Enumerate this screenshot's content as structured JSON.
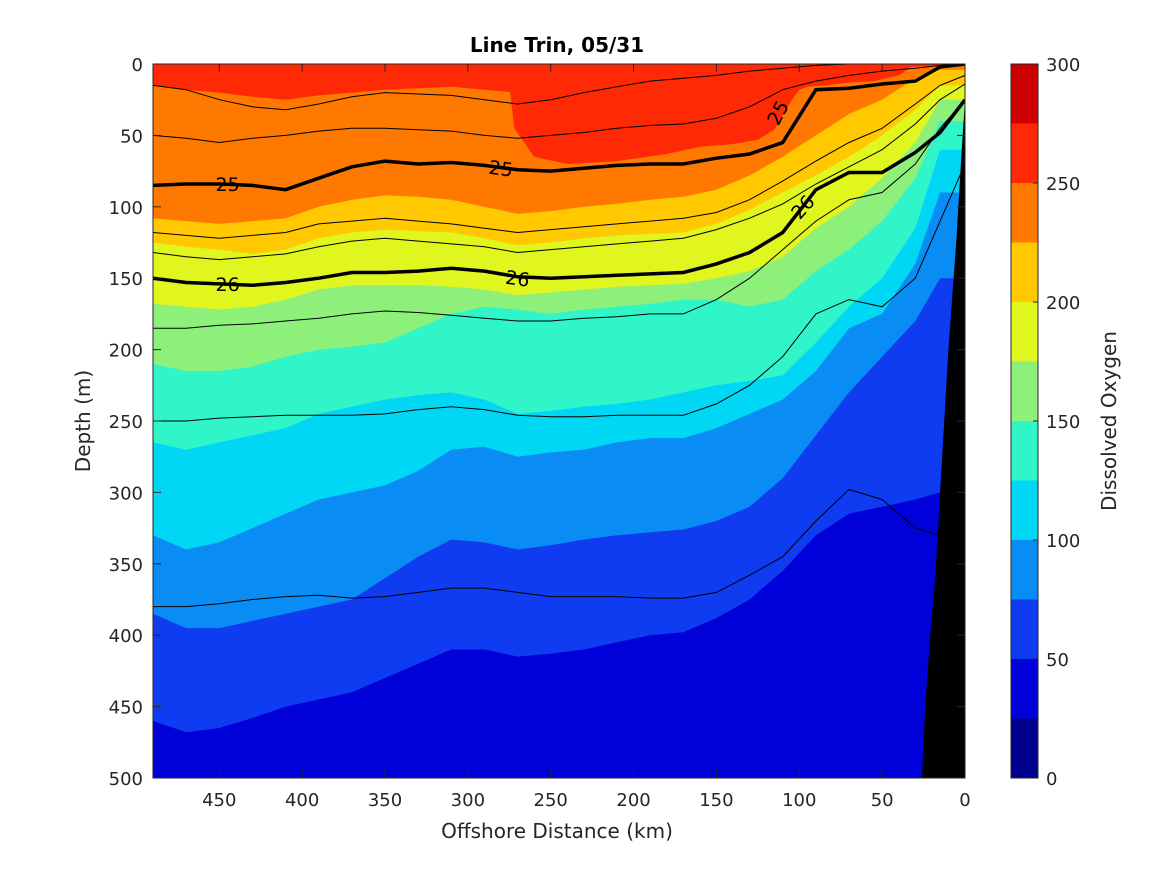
{
  "chart_data": {
    "type": "heatmap",
    "title": "Line Trin, 05/31",
    "xlabel": "Offshore Distance (km)",
    "ylabel": "Depth (m)",
    "xlim": [
      490,
      0
    ],
    "ylim": [
      0,
      500
    ],
    "x_reversed": true,
    "y_reversed": true,
    "xticks": [
      "450",
      "400",
      "350",
      "300",
      "250",
      "200",
      "150",
      "100",
      "50",
      "0"
    ],
    "yticks": [
      "0",
      "50",
      "100",
      "150",
      "200",
      "250",
      "300",
      "350",
      "400",
      "450",
      "500"
    ],
    "colorbar": {
      "label": "Dissolved Oxygen",
      "range": [
        0,
        300
      ],
      "ticks": [
        "0",
        "50",
        "100",
        "150",
        "200",
        "250",
        "300"
      ],
      "levels": [
        {
          "lo": 0,
          "hi": 25,
          "color": "#00008f"
        },
        {
          "lo": 25,
          "hi": 50,
          "color": "#0000d9"
        },
        {
          "lo": 50,
          "hi": 75,
          "color": "#0f3cf0"
        },
        {
          "lo": 75,
          "hi": 100,
          "color": "#0a8cf5"
        },
        {
          "lo": 100,
          "hi": 125,
          "color": "#00d7f5"
        },
        {
          "lo": 125,
          "hi": 150,
          "color": "#2ff5c8"
        },
        {
          "lo": 150,
          "hi": 175,
          "color": "#8cf07a"
        },
        {
          "lo": 175,
          "hi": 200,
          "color": "#e1f51e"
        },
        {
          "lo": 200,
          "hi": 225,
          "color": "#ffc800"
        },
        {
          "lo": 225,
          "hi": 250,
          "color": "#ff7800"
        },
        {
          "lo": 250,
          "hi": 275,
          "color": "#ff2a05"
        },
        {
          "lo": 275,
          "hi": 300,
          "color": "#cc0000"
        }
      ]
    },
    "oxygen_isolines": {
      "x": [
        490,
        470,
        450,
        430,
        410,
        390,
        370,
        350,
        330,
        310,
        290,
        270,
        250,
        230,
        210,
        190,
        170,
        150,
        130,
        110,
        90,
        70,
        50,
        30,
        15
      ],
      "lines": [
        {
          "level": 250,
          "depth": [
            15,
            18,
            20,
            23,
            25,
            22,
            20,
            18,
            17,
            16,
            18,
            20,
            22,
            20,
            18,
            18,
            18,
            15,
            12,
            8,
            6,
            4,
            3,
            2,
            1
          ]
        },
        {
          "level": 225,
          "depth": [
            108,
            110,
            112,
            110,
            108,
            100,
            95,
            92,
            93,
            95,
            100,
            105,
            103,
            100,
            98,
            95,
            93,
            88,
            78,
            65,
            50,
            35,
            25,
            10,
            4
          ]
        },
        {
          "level": 200,
          "depth": [
            125,
            128,
            130,
            133,
            130,
            122,
            118,
            116,
            117,
            118,
            122,
            127,
            125,
            122,
            120,
            119,
            118,
            112,
            102,
            90,
            78,
            65,
            50,
            32,
            15
          ]
        },
        {
          "level": 175,
          "depth": [
            168,
            170,
            172,
            170,
            165,
            158,
            155,
            155,
            155,
            156,
            158,
            162,
            160,
            158,
            156,
            155,
            154,
            150,
            145,
            135,
            115,
            100,
            80,
            55,
            25
          ]
        },
        {
          "level": 150,
          "depth": [
            210,
            215,
            215,
            212,
            205,
            200,
            198,
            195,
            185,
            175,
            170,
            172,
            175,
            172,
            170,
            168,
            165,
            165,
            170,
            165,
            145,
            130,
            110,
            80,
            40
          ]
        },
        {
          "level": 125,
          "depth": [
            265,
            270,
            265,
            260,
            255,
            245,
            240,
            235,
            232,
            230,
            235,
            245,
            243,
            240,
            238,
            235,
            230,
            225,
            222,
            218,
            195,
            170,
            150,
            115,
            60
          ]
        },
        {
          "level": 100,
          "depth": [
            330,
            340,
            335,
            325,
            315,
            305,
            300,
            295,
            285,
            270,
            268,
            275,
            272,
            270,
            265,
            262,
            262,
            255,
            245,
            235,
            215,
            185,
            175,
            140,
            90
          ]
        },
        {
          "level": 75,
          "depth": [
            385,
            395,
            395,
            390,
            385,
            380,
            375,
            360,
            345,
            333,
            335,
            340,
            337,
            333,
            330,
            328,
            326,
            320,
            310,
            290,
            260,
            230,
            205,
            180,
            150
          ]
        },
        {
          "level": 50,
          "depth": [
            460,
            468,
            465,
            458,
            450,
            445,
            440,
            430,
            420,
            410,
            410,
            415,
            413,
            410,
            405,
            400,
            398,
            388,
            375,
            355,
            330,
            315,
            310,
            305,
            300
          ]
        }
      ]
    },
    "density_contours": {
      "x": [
        490,
        470,
        450,
        430,
        410,
        390,
        370,
        350,
        330,
        310,
        290,
        270,
        250,
        230,
        210,
        190,
        170,
        150,
        130,
        110,
        90,
        70,
        50,
        30,
        15,
        0
      ],
      "thin": [
        [
          15,
          18,
          25,
          30,
          32,
          28,
          23,
          20,
          21,
          22,
          25,
          28,
          25,
          20,
          16,
          12,
          10,
          8,
          5,
          3,
          1,
          0,
          0,
          0,
          0,
          0
        ],
        [
          50,
          52,
          55,
          52,
          50,
          47,
          45,
          45,
          46,
          47,
          50,
          52,
          50,
          48,
          45,
          43,
          42,
          38,
          30,
          18,
          12,
          8,
          5,
          3,
          1,
          0
        ],
        [
          118,
          120,
          122,
          120,
          118,
          112,
          110,
          108,
          110,
          112,
          115,
          118,
          116,
          114,
          112,
          110,
          108,
          104,
          95,
          82,
          68,
          55,
          45,
          28,
          15,
          8
        ],
        [
          132,
          135,
          137,
          135,
          133,
          128,
          124,
          122,
          124,
          126,
          128,
          132,
          130,
          128,
          126,
          124,
          122,
          116,
          108,
          98,
          84,
          72,
          60,
          42,
          25,
          14
        ],
        [
          185,
          185,
          183,
          182,
          180,
          178,
          175,
          173,
          174,
          176,
          178,
          180,
          180,
          178,
          177,
          175,
          175,
          165,
          150,
          130,
          110,
          95,
          90,
          70,
          45,
          25
        ],
        [
          250,
          250,
          248,
          247,
          246,
          246,
          246,
          245,
          242,
          240,
          242,
          246,
          247,
          247,
          246,
          246,
          246,
          238,
          225,
          205,
          175,
          165,
          170,
          150,
          110,
          70
        ],
        [
          380,
          380,
          378,
          375,
          373,
          372,
          374,
          373,
          370,
          367,
          367,
          370,
          373,
          373,
          373,
          374,
          374,
          370,
          358,
          345,
          320,
          298,
          305,
          325,
          330,
          320
        ]
      ],
      "sigma_25": [
        85,
        84,
        84,
        85,
        88,
        80,
        72,
        68,
        70,
        69,
        71,
        74,
        75,
        73,
        71,
        70,
        70,
        66,
        63,
        55,
        18,
        17,
        14,
        12,
        2,
        0
      ],
      "sigma_26": [
        150,
        153,
        154,
        155,
        153,
        150,
        146,
        146,
        145,
        143,
        145,
        149,
        150,
        149,
        148,
        147,
        146,
        140,
        132,
        118,
        88,
        76,
        76,
        62,
        48,
        25
      ],
      "labels": [
        {
          "text": "25",
          "x": 445,
          "y": 84,
          "angle": 0
        },
        {
          "text": "25",
          "x": 280,
          "y": 73,
          "angle": 8
        },
        {
          "text": "25",
          "x": 113,
          "y": 34,
          "angle": -62
        },
        {
          "text": "26",
          "x": 445,
          "y": 154,
          "angle": 0
        },
        {
          "text": "26",
          "x": 270,
          "y": 150,
          "angle": 8
        },
        {
          "text": "26",
          "x": 98,
          "y": 100,
          "angle": -48
        }
      ]
    },
    "bathymetry": {
      "x": [
        0,
        2,
        5,
        10,
        15,
        18,
        21,
        24,
        26
      ],
      "depth": [
        25,
        60,
        120,
        200,
        300,
        360,
        400,
        450,
        500
      ],
      "color": "#000000"
    },
    "patches": [
      {
        "level": 275,
        "x": [
          270,
          275,
          272,
          260,
          240,
          210,
          180,
          160,
          140,
          125,
          115,
          110,
          105,
          100,
          95,
          85,
          70,
          55,
          40,
          30,
          37,
          70,
          100,
          130,
          180,
          230,
          270
        ]
      },
      {
        "level": 275,
        "depth": [
          0,
          15,
          45,
          65,
          70,
          68,
          63,
          58,
          56,
          53,
          46,
          36,
          26,
          18,
          16,
          15,
          13,
          12,
          8,
          0,
          0,
          0,
          0,
          0,
          0,
          0,
          0
        ]
      }
    ]
  }
}
